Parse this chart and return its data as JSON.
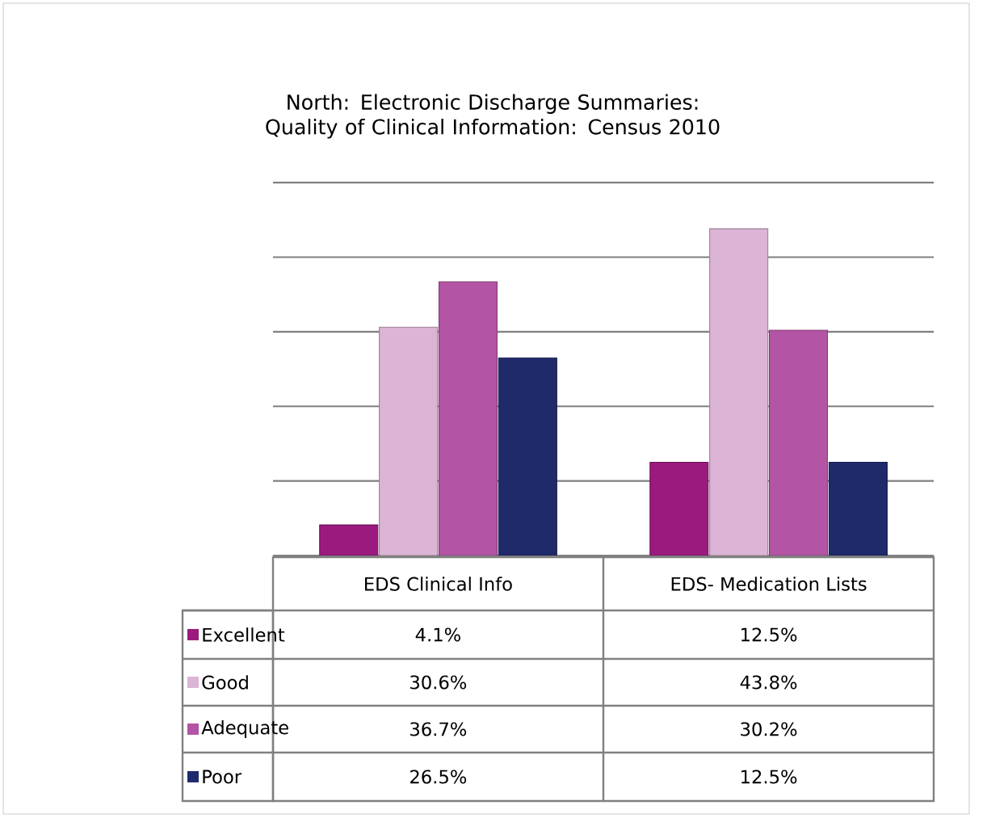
{
  "chart_data": {
    "type": "bar",
    "title": "North: Electronic Discharge Summaries: Quality of Clinical Information: Census 2010",
    "categories": [
      "EDS  Clinical Info",
      "EDS- Medication Lists"
    ],
    "series": [
      {
        "name": "Excellent",
        "color": "#9b1a7e",
        "values": [
          4.1,
          12.5
        ],
        "value_labels": [
          "4.1%",
          "12.5%"
        ]
      },
      {
        "name": "Good",
        "color": "#dcb4d6",
        "values": [
          30.6,
          43.8
        ],
        "value_labels": [
          "30.6%",
          "43.8%"
        ]
      },
      {
        "name": "Adequate",
        "color": "#b454a4",
        "values": [
          36.7,
          30.2
        ],
        "value_labels": [
          "36.7%",
          "30.2%"
        ]
      },
      {
        "name": "Poor",
        "color": "#1f2a6b",
        "values": [
          26.5,
          12.5
        ],
        "value_labels": [
          "26.5%",
          "12.5%"
        ]
      }
    ],
    "ylim": [
      0,
      50
    ],
    "yticks": [
      0,
      10,
      20,
      30,
      40,
      50
    ],
    "tick_labels": false,
    "grid": "y",
    "legend": "bottom left"
  }
}
